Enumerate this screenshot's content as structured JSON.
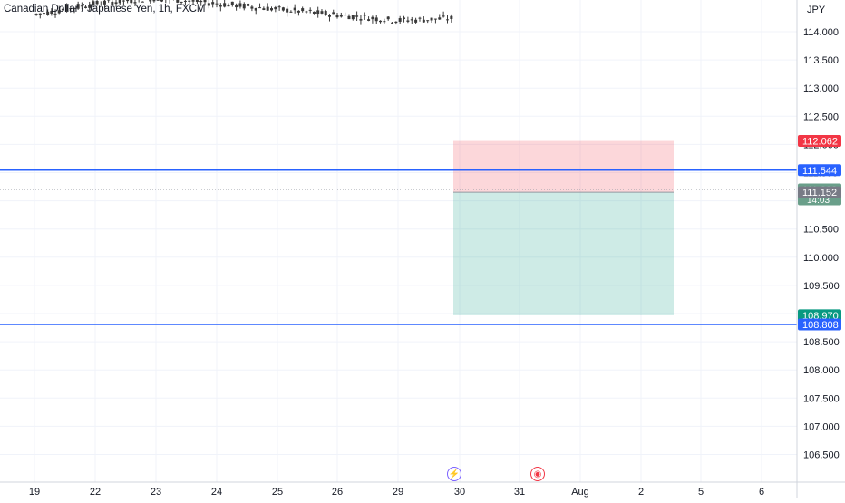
{
  "header": {
    "title": "Canadian Dollar / Japanese Yen, 1h, FXCM",
    "currency": "JPY"
  },
  "events": [
    {
      "icon": "lightning-icon",
      "glyph": "⚡"
    },
    {
      "icon": "record-icon",
      "glyph": "◉"
    }
  ],
  "colors": {
    "bull": "#26a69a",
    "bear": "#ef5350",
    "candle": "#3a3a3a",
    "level_line": "#2962ff",
    "stop_zone": "rgba(242,54,69,0.20)",
    "target_zone": "rgba(8,153,129,0.20)",
    "stop_label": "#f23645",
    "target_label": "#089981",
    "level_label": "#2962ff",
    "current_label": "#6a9f8a",
    "entry_label": "#787b86"
  },
  "chart_data": {
    "type": "candlestick",
    "title": "Canadian Dollar / Japanese Yen, 1h, FXCM",
    "y_unit": "JPY",
    "ylim": [
      106.2,
      114.6
    ],
    "y_ticks": [
      "114.000",
      "113.500",
      "113.000",
      "112.500",
      "112.000",
      "111.500",
      "111.000",
      "110.500",
      "110.000",
      "109.500",
      "109.000",
      "108.500",
      "108.000",
      "107.500",
      "107.000",
      "106.500"
    ],
    "x_ticks": [
      "19",
      "22",
      "23",
      "24",
      "25",
      "26",
      "29",
      "30",
      "31",
      "Aug",
      "2",
      "5",
      "6"
    ],
    "grid": true,
    "horizontal_levels": [
      {
        "label": "111.544",
        "value": 111.544
      },
      {
        "label": "108.808",
        "value": 108.808
      }
    ],
    "position": {
      "side": "short",
      "entry": 111.152,
      "stop": 112.062,
      "target": 108.97,
      "stop_label": "112.062",
      "target_label": "108.970",
      "entry_label": "111.152"
    },
    "current_price": {
      "label": "111.202",
      "countdown": "14:03"
    },
    "price_path": [
      [
        0,
        114.7,
        114.3
      ],
      [
        1,
        114.4,
        114.5
      ],
      [
        2,
        114.8,
        114.6
      ],
      [
        6,
        114.5,
        114.2
      ],
      [
        8.5,
        114.6,
        114.3
      ],
      [
        8.8,
        114.3,
        113.8
      ],
      [
        9.2,
        113.8,
        113.95
      ],
      [
        11,
        113.95,
        114.05
      ],
      [
        11.8,
        114.05,
        114.2
      ],
      [
        12.5,
        114.2,
        113.75
      ],
      [
        14,
        113.75,
        113.45
      ],
      [
        15,
        113.45,
        113.5
      ],
      [
        16.5,
        113.5,
        113.2
      ],
      [
        17.5,
        113.2,
        112.9
      ],
      [
        18.5,
        112.9,
        113.1
      ],
      [
        19.5,
        113.1,
        112.2
      ],
      [
        20.5,
        112.2,
        111.9
      ],
      [
        21.2,
        111.9,
        111.3
      ],
      [
        22,
        111.3,
        111.5
      ],
      [
        22.5,
        111.5,
        111.3
      ],
      [
        23.4,
        111.3,
        110.6
      ],
      [
        24.3,
        110.6,
        110.1
      ],
      [
        25,
        110.1,
        110.4
      ],
      [
        25.5,
        110.4,
        111.3
      ],
      [
        26.2,
        111.3,
        111.65
      ],
      [
        27,
        111.65,
        111.3
      ],
      [
        28,
        111.3,
        111.4
      ],
      [
        29,
        111.4,
        111.25
      ],
      [
        30.3,
        111.25,
        111.95
      ],
      [
        30.8,
        111.95,
        111.3
      ],
      [
        31.5,
        111.3,
        111.1
      ],
      [
        32.5,
        111.1,
        111.5
      ],
      [
        33,
        111.5,
        111.05
      ],
      [
        34.5,
        111.05,
        111.35
      ],
      [
        35.3,
        111.35,
        111.1
      ],
      [
        36.5,
        111.1,
        111.25
      ],
      [
        37.5,
        111.25,
        111.2
      ]
    ]
  }
}
